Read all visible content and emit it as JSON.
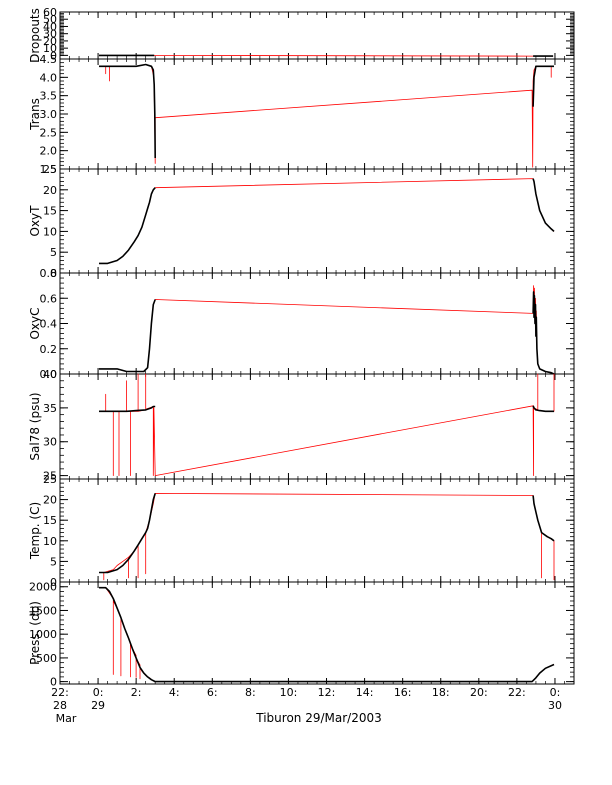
{
  "figure": {
    "title": "Tiburon 29/Mar/2003",
    "colors": {
      "raw": "#ff0000",
      "clean": "#000000",
      "axis": "#000000"
    }
  },
  "chart_data": [
    {
      "type": "line",
      "ylabel": "Dropouts",
      "ylim": [
        -5,
        60
      ],
      "yticks": [
        0,
        10,
        20,
        30,
        40,
        50,
        60
      ],
      "ytick_labels": [
        "0",
        "10",
        "20",
        "30",
        "40",
        "50",
        "60"
      ],
      "series": [
        {
          "color": "#ff0000",
          "x": [
            0.05,
            0.15,
            0.3,
            0.5,
            0.7,
            0.9,
            1.1,
            1.3,
            1.5,
            1.7,
            1.9,
            2.1,
            2.3,
            2.5,
            2.7,
            2.95,
            22.85,
            23.05,
            23.3,
            23.6,
            23.9
          ],
          "y": [
            0,
            0,
            0,
            0,
            0,
            0,
            0,
            0,
            0,
            0,
            0,
            0,
            0,
            0,
            0,
            0,
            -1,
            -1,
            -1,
            -1,
            -1
          ]
        },
        {
          "color": "#000000",
          "x": [
            0.05,
            0.15,
            0.3,
            0.5,
            0.7,
            0.9,
            1.1,
            1.3,
            1.5,
            1.7,
            1.9,
            2.1,
            2.3,
            2.5,
            2.7,
            2.95,
            null,
            22.85,
            23.05,
            23.3,
            23.6,
            23.9
          ],
          "y": [
            0,
            0,
            0,
            0,
            0,
            0,
            0,
            0,
            0,
            0,
            0,
            0,
            0,
            0,
            0,
            0,
            null,
            -1,
            -1,
            -1,
            -1,
            -1
          ]
        }
      ]
    },
    {
      "type": "line",
      "ylabel": "Trans",
      "ylim": [
        1.5,
        4.5
      ],
      "yticks": [
        1.5,
        2.0,
        2.5,
        3.0,
        3.5,
        4.0,
        4.5
      ],
      "ytick_labels": [
        "1.5",
        "2.0",
        "2.5",
        "3.0",
        "3.5",
        "4.0",
        "4.5"
      ],
      "series": [
        {
          "color": "#ff0000",
          "x": [
            0.05,
            0.3,
            0.4,
            0.4,
            0.4,
            0.6,
            0.6,
            0.6,
            1.0,
            1.5,
            2.0,
            2.5,
            2.8,
            2.93,
            2.97,
            3.0,
            3.0,
            3.02,
            22.8,
            22.83,
            22.85,
            22.9,
            23.0,
            23.2,
            23.5,
            23.8,
            23.8,
            23.8,
            23.95
          ],
          "y": [
            4.3,
            4.3,
            4.3,
            4.1,
            4.3,
            4.3,
            3.9,
            4.3,
            4.3,
            4.3,
            4.3,
            4.35,
            4.3,
            4.0,
            3.0,
            1.65,
            2.9,
            2.9,
            3.65,
            1.55,
            3.9,
            4.2,
            4.3,
            4.3,
            4.3,
            4.3,
            4.0,
            4.3,
            4.3
          ]
        },
        {
          "color": "#000000",
          "x": [
            0.05,
            0.5,
            1.0,
            1.5,
            2.0,
            2.5,
            2.8,
            2.9,
            2.95,
            2.98,
            3.0,
            null,
            22.85,
            22.9,
            23.0,
            23.2,
            23.5,
            23.8,
            23.95
          ],
          "y": [
            4.3,
            4.3,
            4.3,
            4.3,
            4.3,
            4.35,
            4.3,
            4.2,
            3.8,
            3.0,
            1.8,
            null,
            3.2,
            4.0,
            4.3,
            4.3,
            4.3,
            4.3,
            4.3
          ]
        }
      ]
    },
    {
      "type": "line",
      "ylabel": "OxyT",
      "ylim": [
        0,
        25
      ],
      "yticks": [
        0,
        5,
        10,
        15,
        20,
        25
      ],
      "ytick_labels": [
        "0",
        "5",
        "10",
        "15",
        "20",
        "25"
      ],
      "series": [
        {
          "color": "#ff0000",
          "x": [
            0.05,
            0.5,
            1.0,
            1.3,
            1.6,
            1.9,
            2.1,
            2.3,
            2.5,
            2.6,
            2.7,
            2.8,
            2.9,
            3.0,
            22.85,
            22.9,
            23.0,
            23.2,
            23.5,
            23.8,
            23.95
          ],
          "y": [
            2.3,
            2.3,
            3.0,
            4.0,
            5.5,
            7.5,
            9.0,
            11.0,
            14.0,
            15.5,
            17.0,
            19.0,
            20.0,
            20.5,
            22.7,
            22.0,
            19.0,
            15.0,
            12.0,
            10.6,
            10.0
          ]
        },
        {
          "color": "#000000",
          "x": [
            0.05,
            0.5,
            1.0,
            1.3,
            1.6,
            1.9,
            2.1,
            2.3,
            2.5,
            2.6,
            2.7,
            2.8,
            2.9,
            3.0,
            null,
            22.85,
            22.9,
            23.0,
            23.2,
            23.5,
            23.8,
            23.95
          ],
          "y": [
            2.3,
            2.3,
            3.0,
            4.0,
            5.5,
            7.5,
            9.0,
            11.0,
            14.0,
            15.5,
            17.0,
            19.0,
            20.0,
            20.5,
            null,
            22.7,
            22.0,
            19.0,
            15.0,
            12.0,
            10.6,
            10.0
          ]
        }
      ]
    },
    {
      "type": "line",
      "ylabel": "OxyC",
      "ylim": [
        0.0,
        0.8
      ],
      "yticks": [
        0.0,
        0.2,
        0.4,
        0.6,
        0.8
      ],
      "ytick_labels": [
        "0.0",
        "0.2",
        "0.4",
        "0.6",
        "0.8"
      ],
      "series": [
        {
          "color": "#ff0000",
          "x": [
            0.05,
            0.5,
            1.0,
            1.5,
            2.0,
            2.4,
            2.6,
            2.7,
            2.8,
            2.9,
            3.0,
            22.85,
            22.88,
            22.9,
            22.92,
            22.95,
            22.98,
            23.0,
            23.02,
            23.05,
            23.1,
            23.2,
            23.5,
            23.8,
            23.95
          ],
          "y": [
            0.04,
            0.04,
            0.04,
            0.02,
            0.02,
            0.02,
            0.05,
            0.2,
            0.4,
            0.55,
            0.59,
            0.48,
            0.7,
            0.45,
            0.68,
            0.4,
            0.6,
            0.3,
            0.5,
            0.2,
            0.08,
            0.04,
            0.02,
            0.01,
            0.0
          ]
        },
        {
          "color": "#000000",
          "x": [
            0.05,
            0.5,
            1.0,
            1.5,
            2.0,
            2.4,
            2.6,
            2.7,
            2.8,
            2.9,
            3.0,
            null,
            22.85,
            22.88,
            22.9,
            22.92,
            22.95,
            22.98,
            23.0,
            23.02,
            23.05,
            23.1,
            23.2,
            23.5,
            23.8,
            23.95
          ],
          "y": [
            0.04,
            0.04,
            0.04,
            0.02,
            0.02,
            0.02,
            0.05,
            0.2,
            0.4,
            0.55,
            0.59,
            null,
            0.48,
            0.65,
            0.45,
            0.62,
            0.4,
            0.55,
            0.3,
            0.45,
            0.2,
            0.08,
            0.04,
            0.02,
            0.01,
            0.0
          ]
        }
      ]
    },
    {
      "type": "line",
      "ylabel": "Sal78 (psu)",
      "ylim": [
        24.5,
        40
      ],
      "yticks": [
        25,
        30,
        35,
        40
      ],
      "ytick_labels": [
        "25",
        "30",
        "35",
        "40"
      ],
      "series": [
        {
          "color": "#ff0000",
          "x": [
            0.05,
            0.4,
            0.4,
            0.4,
            0.8,
            0.8,
            0.8,
            1.1,
            1.1,
            1.1,
            1.5,
            1.5,
            1.5,
            1.7,
            1.7,
            1.7,
            2.1,
            2.1,
            2.1,
            2.5,
            2.5,
            2.5,
            2.9,
            2.9,
            2.93,
            3.0,
            22.85,
            22.88,
            22.88,
            22.9,
            23.1,
            23.1,
            23.1,
            23.5,
            23.95,
            23.95,
            23.95
          ],
          "y": [
            34.5,
            34.5,
            37.0,
            34.5,
            34.5,
            25.0,
            34.5,
            34.5,
            25.0,
            34.5,
            34.5,
            39.0,
            34.5,
            34.5,
            25.0,
            34.5,
            34.5,
            40.0,
            34.5,
            34.7,
            40.0,
            34.8,
            35.2,
            25.0,
            35.0,
            25.0,
            35.3,
            25.0,
            35.3,
            35.0,
            34.7,
            40.0,
            34.6,
            34.5,
            34.5,
            40.0,
            34.5
          ]
        },
        {
          "color": "#000000",
          "x": [
            0.05,
            0.5,
            1.0,
            1.5,
            2.0,
            2.5,
            2.8,
            2.9,
            3.0,
            null,
            22.85,
            22.9,
            23.0,
            23.2,
            23.5,
            23.95
          ],
          "y": [
            34.5,
            34.5,
            34.5,
            34.5,
            34.6,
            34.7,
            35.0,
            35.2,
            35.2,
            null,
            35.3,
            35.0,
            34.7,
            34.6,
            34.5,
            34.5
          ]
        }
      ]
    },
    {
      "type": "line",
      "ylabel": "Temp. (C)",
      "ylim": [
        0,
        25
      ],
      "yticks": [
        0,
        5,
        10,
        15,
        20,
        25
      ],
      "ytick_labels": [
        "0",
        "5",
        "10",
        "15",
        "20",
        "25"
      ],
      "series": [
        {
          "color": "#ff0000",
          "x": [
            0.05,
            0.3,
            0.3,
            0.3,
            0.8,
            1.0,
            1.3,
            1.6,
            1.6,
            1.6,
            1.9,
            2.1,
            2.1,
            2.1,
            2.5,
            2.5,
            2.5,
            2.7,
            2.9,
            3.0,
            22.85,
            22.9,
            23.1,
            23.3,
            23.3,
            23.3,
            23.6,
            23.95,
            23.95,
            23.95
          ],
          "y": [
            2.3,
            2.3,
            0.5,
            2.3,
            3.0,
            4.0,
            5.0,
            6.0,
            1.0,
            6.0,
            7.5,
            9.0,
            1.0,
            9.0,
            12.0,
            2.0,
            12.0,
            15.0,
            19.0,
            21.5,
            21.0,
            19.0,
            15.0,
            12.0,
            1.0,
            12.0,
            11.0,
            10.0,
            0.5,
            10.0
          ]
        },
        {
          "color": "#000000",
          "x": [
            0.05,
            0.5,
            1.0,
            1.3,
            1.6,
            1.9,
            2.1,
            2.3,
            2.5,
            2.6,
            2.7,
            2.8,
            2.9,
            3.0,
            null,
            22.85,
            22.9,
            23.0,
            23.1,
            23.3,
            23.6,
            23.8,
            23.95
          ],
          "y": [
            2.3,
            2.3,
            3.0,
            4.0,
            5.5,
            7.5,
            9.0,
            10.5,
            12.0,
            13.0,
            15.0,
            17.5,
            20.0,
            21.5,
            null,
            21.0,
            19.0,
            17.0,
            15.0,
            12.0,
            11.0,
            10.5,
            10.0
          ]
        }
      ]
    },
    {
      "type": "line",
      "ylabel": "Press. (db)",
      "ylim": [
        -50,
        2100
      ],
      "yticks": [
        0,
        500,
        1000,
        1500,
        2000
      ],
      "ytick_labels": [
        "0",
        "500",
        "1000",
        "1500",
        "2000"
      ],
      "series": [
        {
          "color": "#ff0000",
          "x": [
            0.05,
            0.4,
            0.8,
            0.8,
            0.8,
            1.0,
            1.2,
            1.2,
            1.2,
            1.4,
            1.6,
            1.7,
            1.7,
            1.7,
            1.8,
            2.0,
            2.0,
            2.0,
            2.1,
            2.2,
            2.2,
            2.2,
            2.3,
            2.5,
            2.7,
            2.8,
            3.0,
            3.5,
            10.0,
            16.0,
            22.8,
            23.0,
            23.2,
            23.5,
            23.95
          ],
          "y": [
            1980,
            1980,
            1750,
            150,
            1700,
            1550,
            1350,
            120,
            1350,
            1120,
            920,
            820,
            100,
            820,
            700,
            550,
            90,
            500,
            420,
            350,
            60,
            300,
            220,
            130,
            80,
            40,
            0,
            0,
            0,
            0,
            0,
            80,
            180,
            280,
            360
          ]
        },
        {
          "color": "#000000",
          "x": [
            0.05,
            0.4,
            0.6,
            0.8,
            1.0,
            1.2,
            1.4,
            1.6,
            1.8,
            2.0,
            2.2,
            2.4,
            2.6,
            2.8,
            3.0,
            3.5,
            10.0,
            16.0,
            22.8,
            23.0,
            23.2,
            23.5,
            23.95
          ],
          "y": [
            1980,
            1980,
            1900,
            1750,
            1550,
            1350,
            1120,
            920,
            700,
            500,
            300,
            180,
            100,
            40,
            0,
            0,
            0,
            0,
            0,
            80,
            180,
            280,
            360
          ]
        }
      ]
    }
  ],
  "time_axis": {
    "range": [
      -2,
      25
    ],
    "major_ticks": [
      -2,
      0,
      2,
      4,
      6,
      8,
      10,
      12,
      14,
      16,
      18,
      20,
      22,
      24
    ],
    "labels": [
      "22:",
      "0:",
      "2:",
      "4:",
      "6:",
      "8:",
      "10:",
      "12:",
      "14:",
      "16:",
      "18:",
      "20:",
      "22:",
      "0:"
    ],
    "day_labels": [
      {
        "x": -2,
        "day": "28",
        "month": "Mar"
      },
      {
        "x": 0,
        "day": "29",
        "month": ""
      },
      {
        "x": 24,
        "day": "30",
        "month": ""
      }
    ]
  }
}
